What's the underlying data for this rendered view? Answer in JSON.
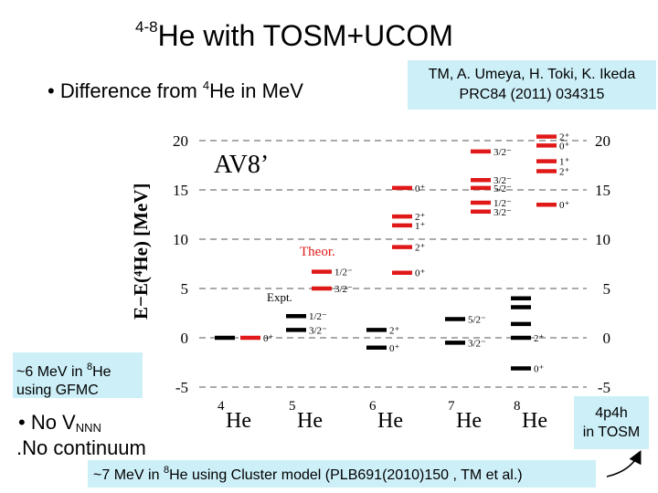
{
  "slide": {
    "title_super": "4-8",
    "title_main": "He  with TOSM+UCOM",
    "bullet1_prefix": "• Difference from ",
    "bullet1_super": "4",
    "bullet1_suffix": "He in MeV",
    "reference_line1": "TM, A. Umeya, H. Toki, K. Ikeda",
    "reference_line2": "PRC84 (2011) 034315",
    "gfmc_pre": "~6 MeV in ",
    "gfmc_super": "8",
    "gfmc_post": "He",
    "gfmc_line2": "using GFMC",
    "bullet2_prefix": "• No V",
    "bullet2_sub": "NNN",
    "bullet3": "No continuum",
    "bullet3_marker": ".",
    "tosm_line1": "4p4h",
    "tosm_line2": "in TOSM",
    "cluster_pre": "~7 MeV in ",
    "cluster_super": "8",
    "cluster_post": "He using Cluster model (PLB691(2010)150 , TM et al.)"
  },
  "chart_data": {
    "type": "level-scheme",
    "interaction_label": "AV8’",
    "theory_label": "Theor.",
    "experiment_label": "Expt.",
    "ylabel": "E−E(⁴He)  [MeV]",
    "ylim": [
      -5,
      21
    ],
    "yticks": [
      20,
      15,
      10,
      5,
      0,
      -5
    ],
    "ytick_labels": [
      "20",
      "15",
      "10",
      "5",
      "0",
      "-5"
    ],
    "grid": "horizontal dashed",
    "colors": {
      "theory": "#e01818",
      "experiment": "#000000"
    },
    "nuclei": [
      {
        "name": "He",
        "mass": "4"
      },
      {
        "name": "He",
        "mass": "5"
      },
      {
        "name": "He",
        "mass": "6"
      },
      {
        "name": "He",
        "mass": "7"
      },
      {
        "name": "He",
        "mass": "8"
      }
    ],
    "levels": [
      {
        "nucleus": 0,
        "kind": "experiment",
        "energy": 0.0,
        "label": ""
      },
      {
        "nucleus": 0,
        "kind": "theory",
        "energy": 0.0,
        "label": "0⁺"
      },
      {
        "nucleus": 1,
        "kind": "experiment",
        "energy": 0.8,
        "label": "3/2⁻"
      },
      {
        "nucleus": 1,
        "kind": "experiment",
        "energy": 2.2,
        "label": "1/2⁻"
      },
      {
        "nucleus": 1,
        "kind": "theory",
        "energy": 5.0,
        "label": "3/2⁻"
      },
      {
        "nucleus": 1,
        "kind": "theory",
        "energy": 6.7,
        "label": "1/2⁻"
      },
      {
        "nucleus": 2,
        "kind": "experiment",
        "energy": -1.0,
        "label": "0⁺"
      },
      {
        "nucleus": 2,
        "kind": "experiment",
        "energy": 0.8,
        "label": "2⁺"
      },
      {
        "nucleus": 2,
        "kind": "theory",
        "energy": 6.6,
        "label": "0⁺"
      },
      {
        "nucleus": 2,
        "kind": "theory",
        "energy": 9.2,
        "label": "2⁺"
      },
      {
        "nucleus": 2,
        "kind": "theory",
        "energy": 11.4,
        "label": "1⁺"
      },
      {
        "nucleus": 2,
        "kind": "theory",
        "energy": 12.3,
        "label": "2⁺"
      },
      {
        "nucleus": 2,
        "kind": "theory",
        "energy": 15.2,
        "label": "0⁺"
      },
      {
        "nucleus": 3,
        "kind": "experiment",
        "energy": -0.5,
        "label": "3/2⁻"
      },
      {
        "nucleus": 3,
        "kind": "experiment",
        "energy": 1.9,
        "label": "5/2⁻"
      },
      {
        "nucleus": 3,
        "kind": "theory",
        "energy": 12.8,
        "label": "3/2⁻"
      },
      {
        "nucleus": 3,
        "kind": "theory",
        "energy": 13.7,
        "label": "1/2⁻"
      },
      {
        "nucleus": 3,
        "kind": "theory",
        "energy": 15.2,
        "label": "5/2⁻"
      },
      {
        "nucleus": 3,
        "kind": "theory",
        "energy": 16.0,
        "label": "3/2⁻"
      },
      {
        "nucleus": 3,
        "kind": "theory",
        "energy": 18.9,
        "label": "3/2⁻"
      },
      {
        "nucleus": 4,
        "kind": "experiment",
        "energy": -3.1,
        "label": "0⁺"
      },
      {
        "nucleus": 4,
        "kind": "experiment",
        "energy": 0.0,
        "label": "2⁺"
      },
      {
        "nucleus": 4,
        "kind": "experiment",
        "energy": 1.4,
        "label": ""
      },
      {
        "nucleus": 4,
        "kind": "experiment",
        "energy": 3.1,
        "label": ""
      },
      {
        "nucleus": 4,
        "kind": "experiment",
        "energy": 4.0,
        "label": ""
      },
      {
        "nucleus": 4,
        "kind": "theory",
        "energy": 13.5,
        "label": "0⁺"
      },
      {
        "nucleus": 4,
        "kind": "theory",
        "energy": 16.9,
        "label": "2⁺"
      },
      {
        "nucleus": 4,
        "kind": "theory",
        "energy": 17.9,
        "label": "1⁺"
      },
      {
        "nucleus": 4,
        "kind": "theory",
        "energy": 19.5,
        "label": "0⁺"
      },
      {
        "nucleus": 4,
        "kind": "theory",
        "energy": 20.4,
        "label": "2⁺"
      }
    ]
  }
}
